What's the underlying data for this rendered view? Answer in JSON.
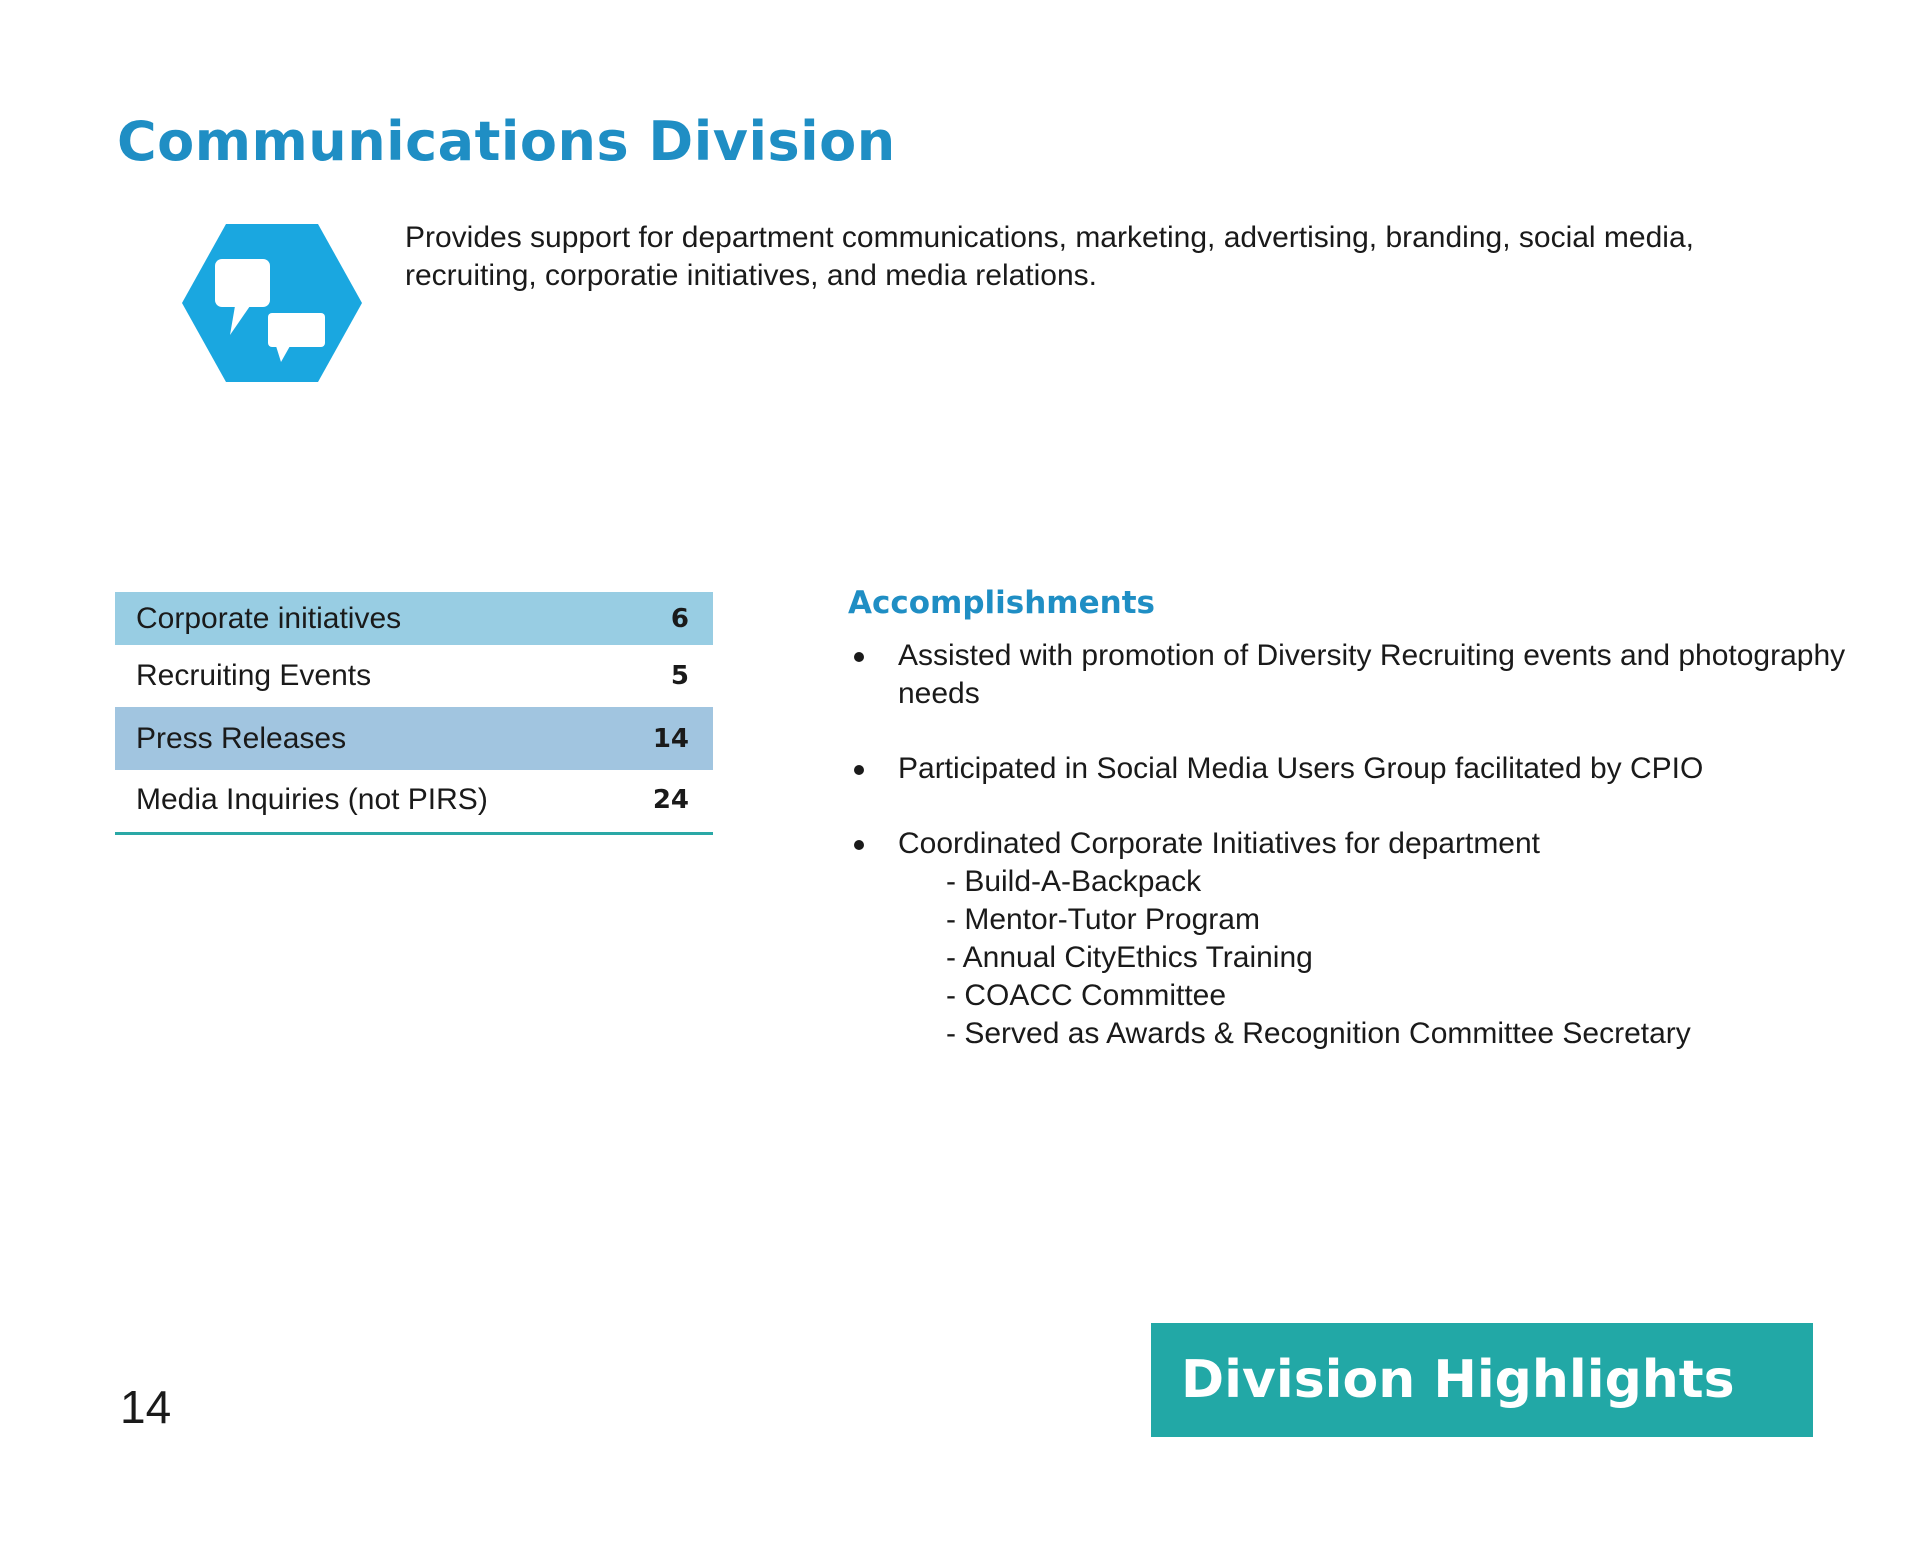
{
  "title": "Communications Division",
  "intro": "Provides support for department communications, marketing, advertising, branding, social media, recruiting, corporatie initiatives, and media relations.",
  "icon": {
    "name": "speech-bubbles-icon",
    "hex_color": "#1aa7e0",
    "bubble_color": "#ffffff"
  },
  "stats": [
    {
      "label": "Corporate initiatives",
      "value": "6"
    },
    {
      "label": "Recruiting Events",
      "value": "5"
    },
    {
      "label": "Press Releases",
      "value": "14"
    },
    {
      "label": "Media Inquiries (not PIRS)",
      "value": "24"
    }
  ],
  "accomplishments": {
    "title": "Accomplishments",
    "items": [
      {
        "text": "Assisted with promotion of Diversity Recruiting events and photography needs"
      },
      {
        "text": "Participated in Social Media Users Group facilitated by CPIO"
      },
      {
        "text": "Coordinated Corporate Initiatives for department"
      }
    ],
    "subitems": [
      "- Build-A-Backpack",
      "- Mentor-Tutor Program",
      "- Annual CityEthics Training",
      "- COACC Committee",
      "- Served as Awards & Recognition Committee Secretary"
    ]
  },
  "page_number": "14",
  "highlight": "Division Highlights",
  "colors": {
    "title_blue": "#1f8ec4",
    "teal": "#22a8a6",
    "row_light_blue": "#98cde3",
    "row_mid_blue": "#a1c5e0"
  }
}
